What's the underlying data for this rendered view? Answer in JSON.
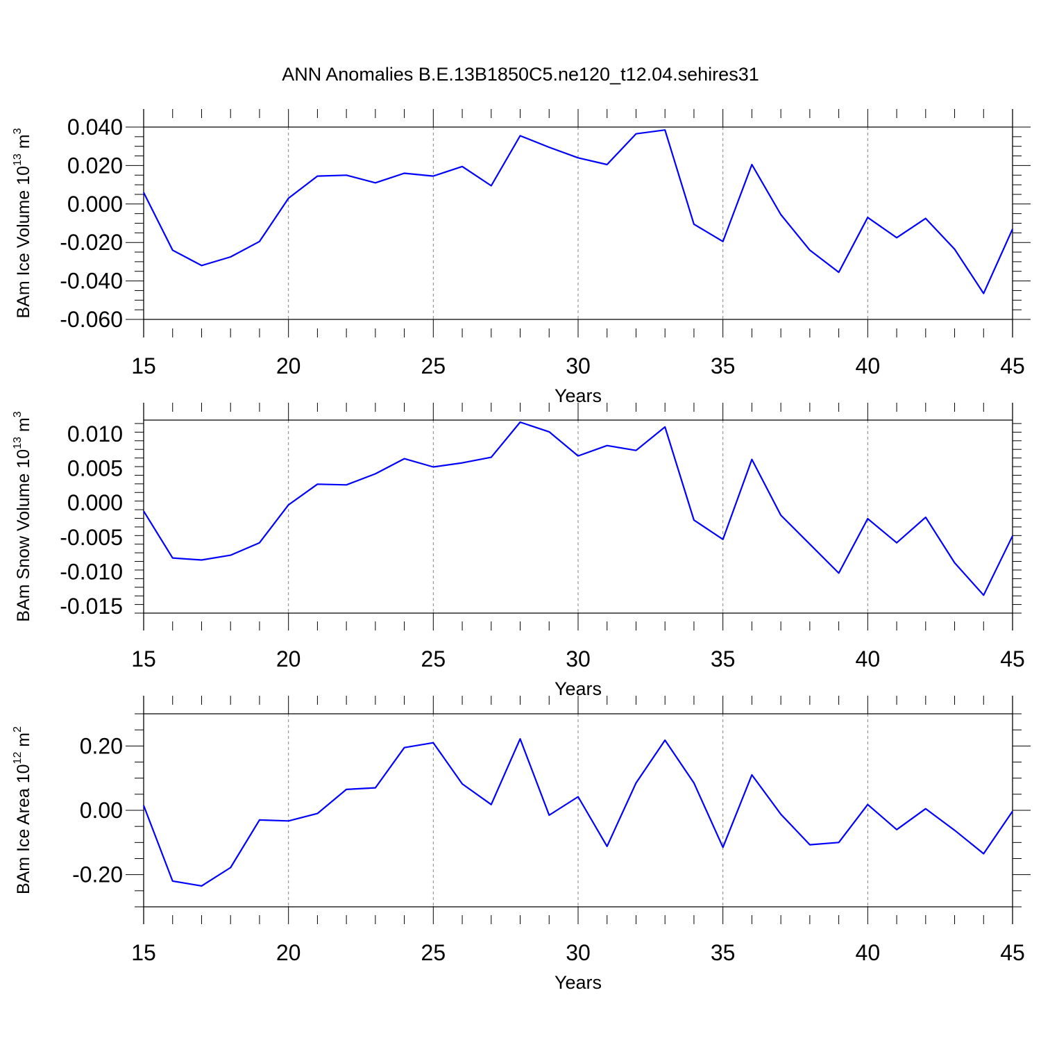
{
  "title": "ANN Anomalies B.E.13B1850C5.ne120_t12.04.sehires31",
  "colors": {
    "line": "#0000ff",
    "axis": "#000000",
    "grid": "#808080",
    "background": "#ffffff"
  },
  "chart_data": [
    {
      "type": "line",
      "title": "ANN Anomalies B.E.13B1850C5.ne120_t12.04.sehires31",
      "xlabel": "Years",
      "ylabel": "BAm Ice Volume 10",
      "ylabel_exp": "13",
      "ylabel_unit": " m",
      "ylabel_unit_exp": "3",
      "xlim": [
        15,
        45
      ],
      "ylim": [
        -0.06,
        0.04
      ],
      "xticks": [
        15,
        20,
        25,
        30,
        35,
        40,
        45
      ],
      "xtick_labels": [
        "15",
        "20",
        "25",
        "30",
        "35",
        "40",
        "45"
      ],
      "yticks": [
        0.04,
        0.02,
        0.0,
        -0.02,
        -0.04,
        -0.06
      ],
      "ytick_labels": [
        "0.040",
        "0.020",
        "0.000",
        "-0.020",
        "-0.040",
        "-0.060"
      ],
      "grid": "vertical dashed at major x ticks",
      "series": [
        {
          "name": "BAm Ice Volume",
          "x": [
            15,
            16,
            17,
            18,
            19,
            20,
            21,
            22,
            23,
            24,
            25,
            26,
            27,
            28,
            29,
            30,
            31,
            32,
            33,
            34,
            35,
            36,
            37,
            38,
            39,
            40,
            41,
            42,
            43,
            44,
            45
          ],
          "values": [
            0.006,
            -0.024,
            -0.032,
            -0.0275,
            -0.0195,
            0.003,
            0.0145,
            0.015,
            0.011,
            0.016,
            0.0145,
            0.0195,
            0.0095,
            0.0355,
            0.0295,
            0.024,
            0.0205,
            0.0365,
            0.0385,
            -0.0105,
            -0.0195,
            0.0205,
            -0.0055,
            -0.024,
            -0.0355,
            -0.007,
            -0.0175,
            -0.0075,
            -0.0235,
            -0.0465,
            -0.013
          ]
        }
      ]
    },
    {
      "type": "line",
      "xlabel": "Years",
      "ylabel": "BAm Snow Volume 10",
      "ylabel_exp": "13",
      "ylabel_unit": " m",
      "ylabel_unit_exp": "3",
      "xlim": [
        15,
        45
      ],
      "ylim": [
        -0.016,
        0.012
      ],
      "xticks": [
        15,
        20,
        25,
        30,
        35,
        40,
        45
      ],
      "xtick_labels": [
        "15",
        "20",
        "25",
        "30",
        "35",
        "40",
        "45"
      ],
      "yticks": [
        0.01,
        0.005,
        0.0,
        -0.005,
        -0.01,
        -0.015
      ],
      "ytick_labels": [
        "0.010",
        "0.005",
        "0.000",
        "-0.005",
        "-0.010",
        "-0.015"
      ],
      "grid": "vertical dashed at major x ticks",
      "series": [
        {
          "name": "BAm Snow Volume",
          "x": [
            15,
            16,
            17,
            18,
            19,
            20,
            21,
            22,
            23,
            24,
            25,
            26,
            27,
            28,
            29,
            30,
            31,
            32,
            33,
            34,
            35,
            36,
            37,
            38,
            39,
            40,
            41,
            42,
            43,
            44,
            45
          ],
          "values": [
            -0.0012,
            -0.008,
            -0.0083,
            -0.0076,
            -0.0058,
            -0.0003,
            0.0027,
            0.0026,
            0.0042,
            0.0064,
            0.0052,
            0.0058,
            0.0066,
            0.0117,
            0.0103,
            0.0068,
            0.0083,
            0.0076,
            0.011,
            -0.0025,
            -0.0053,
            0.0063,
            -0.0018,
            -0.006,
            -0.0102,
            -0.0023,
            -0.0058,
            -0.0021,
            -0.0087,
            -0.0134,
            -0.0048
          ]
        }
      ]
    },
    {
      "type": "line",
      "xlabel": "Years",
      "ylabel": "BAm Ice Area 10",
      "ylabel_exp": "12",
      "ylabel_unit": " m",
      "ylabel_unit_exp": "2",
      "xlim": [
        15,
        45
      ],
      "ylim": [
        -0.3,
        0.3
      ],
      "xticks": [
        15,
        20,
        25,
        30,
        35,
        40,
        45
      ],
      "xtick_labels": [
        "15",
        "20",
        "25",
        "30",
        "35",
        "40",
        "45"
      ],
      "yticks": [
        0.2,
        0.0,
        -0.2
      ],
      "ytick_labels": [
        "0.20",
        "0.00",
        "-0.20"
      ],
      "grid": "vertical dashed at major x ticks",
      "series": [
        {
          "name": "BAm Ice Area",
          "x": [
            15,
            16,
            17,
            18,
            19,
            20,
            21,
            22,
            23,
            24,
            25,
            26,
            27,
            28,
            29,
            30,
            31,
            32,
            33,
            34,
            35,
            36,
            37,
            38,
            39,
            40,
            41,
            42,
            43,
            44,
            45
          ],
          "values": [
            0.015,
            -0.22,
            -0.235,
            -0.178,
            -0.03,
            -0.033,
            -0.01,
            0.065,
            0.07,
            0.195,
            0.21,
            0.082,
            0.018,
            0.222,
            -0.015,
            0.042,
            -0.112,
            0.085,
            0.218,
            0.085,
            -0.115,
            0.11,
            -0.012,
            -0.107,
            -0.1,
            0.018,
            -0.06,
            0.005,
            -0.062,
            -0.135,
            -0.003
          ]
        }
      ]
    }
  ]
}
